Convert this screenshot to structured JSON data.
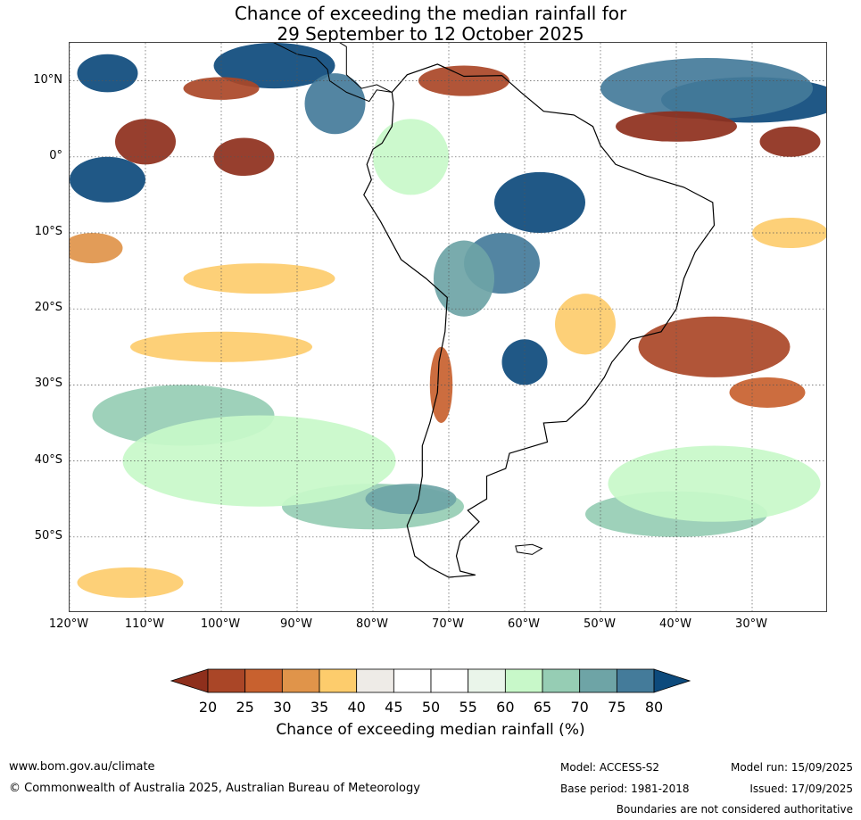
{
  "title": {
    "line1": "Chance of exceeding the median rainfall for",
    "line2": "29 September to 12 October 2025"
  },
  "map": {
    "lon_range": [
      -120,
      -20
    ],
    "lat_range": [
      -60,
      15
    ],
    "lat_ticks": [
      {
        "value": 10,
        "label": "10°N"
      },
      {
        "value": 0,
        "label": "0°"
      },
      {
        "value": -10,
        "label": "10°S"
      },
      {
        "value": -20,
        "label": "20°S"
      },
      {
        "value": -30,
        "label": "30°S"
      },
      {
        "value": -40,
        "label": "40°S"
      },
      {
        "value": -50,
        "label": "50°S"
      }
    ],
    "lon_ticks": [
      {
        "value": -120,
        "label": "120°W"
      },
      {
        "value": -110,
        "label": "110°W"
      },
      {
        "value": -100,
        "label": "100°W"
      },
      {
        "value": -90,
        "label": "90°W"
      },
      {
        "value": -80,
        "label": "80°W"
      },
      {
        "value": -70,
        "label": "70°W"
      },
      {
        "value": -60,
        "label": "60°W"
      },
      {
        "value": -50,
        "label": "50°W"
      },
      {
        "value": -40,
        "label": "40°W"
      },
      {
        "value": -30,
        "label": "30°W"
      }
    ],
    "colors": {
      "20": "#8e2f1c",
      "25": "#aa4627",
      "30": "#c8612f",
      "35": "#e0944a",
      "40": "#fdcc6c",
      "45": "#eeebe7",
      "50": "#ffffff",
      "55": "#ffffff",
      "60": "#eaf5ea",
      "65": "#c8f8c9",
      "70": "#96cdb4",
      "75": "#6ea4a6",
      "80": "#447b9a",
      "over": "#0d4a7c"
    },
    "regions": [
      {
        "cls": "over",
        "lon": -115,
        "lat": 11,
        "rlon": 4,
        "rlat": 2.5
      },
      {
        "cls": "over",
        "lon": -93,
        "lat": 12,
        "rlon": 8,
        "rlat": 3
      },
      {
        "cls": "80",
        "lon": -85,
        "lat": 7,
        "rlon": 4,
        "rlat": 4
      },
      {
        "cls": "over",
        "lon": -30,
        "lat": 7.5,
        "rlon": 12,
        "rlat": 3
      },
      {
        "cls": "80",
        "lon": -36,
        "lat": 9,
        "rlon": 14,
        "rlat": 4
      },
      {
        "cls": "over",
        "lon": -115,
        "lat": -3,
        "rlon": 5,
        "rlat": 3
      },
      {
        "cls": "over",
        "lon": -58,
        "lat": -6,
        "rlon": 6,
        "rlat": 4
      },
      {
        "cls": "80",
        "lon": -63,
        "lat": -14,
        "rlon": 5,
        "rlat": 4
      },
      {
        "cls": "over",
        "lon": -60,
        "lat": -27,
        "rlon": 3,
        "rlat": 3
      },
      {
        "cls": "75",
        "lon": -68,
        "lat": -16,
        "rlon": 4,
        "rlat": 5
      },
      {
        "cls": "70",
        "lon": -105,
        "lat": -34,
        "rlon": 12,
        "rlat": 4
      },
      {
        "cls": "70",
        "lon": -80,
        "lat": -46,
        "rlon": 12,
        "rlat": 3
      },
      {
        "cls": "75",
        "lon": -75,
        "lat": -45,
        "rlon": 6,
        "rlat": 2
      },
      {
        "cls": "70",
        "lon": -40,
        "lat": -47,
        "rlon": 12,
        "rlat": 3
      },
      {
        "cls": "65",
        "lon": -95,
        "lat": -40,
        "rlon": 18,
        "rlat": 6
      },
      {
        "cls": "65",
        "lon": -35,
        "lat": -43,
        "rlon": 14,
        "rlat": 5
      },
      {
        "cls": "65",
        "lon": -75,
        "lat": 0,
        "rlon": 5,
        "rlat": 5
      },
      {
        "cls": "20",
        "lon": -110,
        "lat": 2,
        "rlon": 4,
        "rlat": 3
      },
      {
        "cls": "20",
        "lon": -97,
        "lat": 0,
        "rlon": 4,
        "rlat": 2.5
      },
      {
        "cls": "25",
        "lon": -100,
        "lat": 9,
        "rlon": 5,
        "rlat": 1.5
      },
      {
        "cls": "20",
        "lon": -40,
        "lat": 4,
        "rlon": 8,
        "rlat": 2
      },
      {
        "cls": "20",
        "lon": -25,
        "lat": 2,
        "rlon": 4,
        "rlat": 2
      },
      {
        "cls": "25",
        "lon": -68,
        "lat": 10,
        "rlon": 6,
        "rlat": 2
      },
      {
        "cls": "25",
        "lon": -35,
        "lat": -25,
        "rlon": 10,
        "rlat": 4
      },
      {
        "cls": "30",
        "lon": -28,
        "lat": -31,
        "rlon": 5,
        "rlat": 2
      },
      {
        "cls": "30",
        "lon": -71,
        "lat": -30,
        "rlon": 1.5,
        "rlat": 5
      },
      {
        "cls": "35",
        "lon": -117,
        "lat": -12,
        "rlon": 4,
        "rlat": 2
      },
      {
        "cls": "40",
        "lon": -95,
        "lat": -16,
        "rlon": 10,
        "rlat": 2
      },
      {
        "cls": "40",
        "lon": -100,
        "lat": -25,
        "rlon": 12,
        "rlat": 2
      },
      {
        "cls": "40",
        "lon": -52,
        "lat": -22,
        "rlon": 4,
        "rlat": 4
      },
      {
        "cls": "40",
        "lon": -112,
        "lat": -56,
        "rlon": 7,
        "rlat": 2
      },
      {
        "cls": "40",
        "lon": -25,
        "lat": -10,
        "rlon": 5,
        "rlat": 2
      }
    ]
  },
  "colorbar": {
    "labels": [
      "20",
      "25",
      "30",
      "35",
      "40",
      "45",
      "50",
      "55",
      "60",
      "65",
      "70",
      "75",
      "80"
    ],
    "title": "Chance of exceeding median rainfall (%)"
  },
  "footer": {
    "website": "www.bom.gov.au/climate",
    "copyright": "© Commonwealth of Australia 2025, Australian Bureau of Meteorology",
    "model": "Model: ACCESS-S2",
    "base_period": "Base period: 1981-2018",
    "model_run": "Model run: 15/09/2025",
    "issued": "Issued: 17/09/2025",
    "disclaimer": "Boundaries are not considered authoritative"
  }
}
